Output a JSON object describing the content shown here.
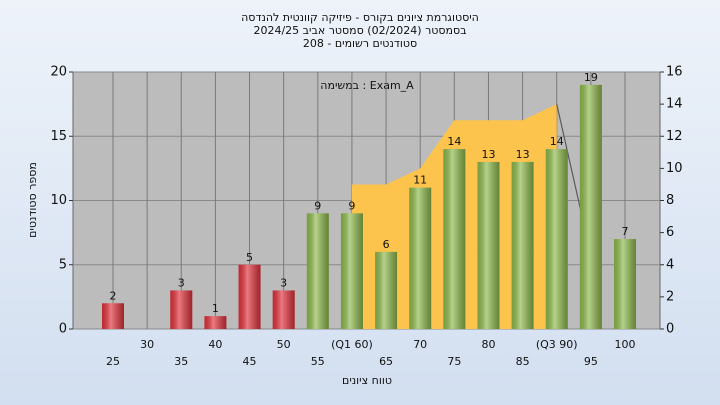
{
  "chart_data": {
    "type": "bar",
    "title": [
      "היסטוגרמת ציונים בקורס - פיזיקה קוונטית להנדסה",
      "בסמסטר  (02/2024)  סמסטר אביב 2024/25",
      "סטודנטים רשומים - 208"
    ],
    "annotation": "במשימה : Exam_A",
    "y_label": "מספר סטודנטים",
    "x_label": "טווח ציונים",
    "categories": [
      "25",
      "30",
      "35",
      "40",
      "45",
      "50",
      "55",
      "(Q1 60)",
      "65",
      "70",
      "75",
      "80",
      "85",
      "(Q3 90)",
      "95",
      "100"
    ],
    "series": [
      {
        "type": "bar",
        "values": [
          2,
          null,
          3,
          1,
          5,
          3,
          9,
          9,
          6,
          11,
          14,
          13,
          13,
          14,
          19,
          7
        ],
        "colors": [
          "#e3323c",
          "#e3323c",
          "#e3323c",
          "#e3323c",
          "#e3323c",
          "#e3323c",
          "#8fbb4c",
          "#8fbb4c",
          "#8fbb4c",
          "#8fbb4c",
          "#8fbb4c",
          "#8fbb4c",
          "#8fbb4c",
          "#8fbb4c",
          "#8fbb4c",
          "#8fbb4c"
        ]
      },
      {
        "type": "area",
        "axis": "y2",
        "color": "#fcc44c",
        "values": [
          null,
          null,
          null,
          null,
          null,
          null,
          null,
          9,
          9,
          10,
          13,
          13,
          13,
          14,
          null,
          null
        ]
      },
      {
        "type": "line",
        "axis": "y2",
        "color": "#5a5a5a",
        "values": [
          null,
          null,
          null,
          null,
          null,
          null,
          null,
          null,
          null,
          null,
          null,
          null,
          null,
          14,
          4.6,
          null
        ]
      }
    ],
    "ylim": [
      0,
      20
    ],
    "yticks": [
      0,
      5,
      10,
      15,
      20
    ],
    "y2lim": [
      0,
      16
    ],
    "y2ticks": [
      0,
      2,
      4,
      6,
      8,
      10,
      12,
      14,
      16
    ],
    "grid": true
  }
}
